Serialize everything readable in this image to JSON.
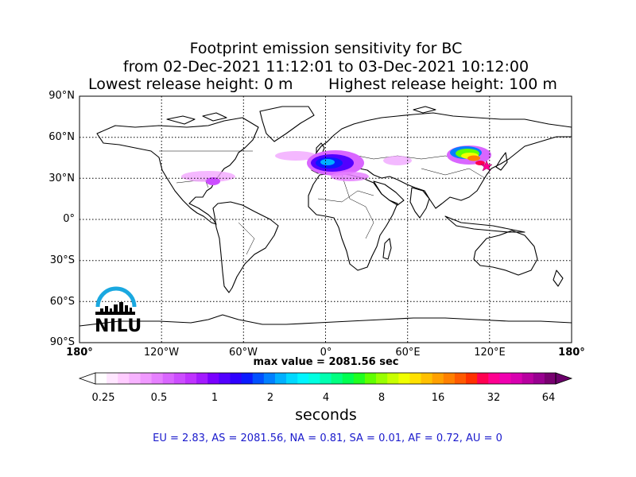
{
  "title": {
    "line1": "Footprint emission sensitivity for BC",
    "line2": "from 02-Dec-2021 11:12:01 to 03-Dec-2021 10:12:00",
    "lowest_release": "Lowest release height: 0 m",
    "highest_release": "Highest release height: 100 m"
  },
  "map": {
    "lat_labels": [
      "90°N",
      "60°N",
      "30°N",
      "0°",
      "30°S",
      "60°S",
      "90°S"
    ],
    "lon_labels": [
      "180°",
      "120°W",
      "60°W",
      "0°",
      "60°E",
      "120°E",
      "180°"
    ],
    "grid": "dotted",
    "logo_text": "NILU"
  },
  "max_value": "max value = 2081.56 sec",
  "colorbar": {
    "ticks": [
      "0.25",
      "0.5",
      "1",
      "2",
      "4",
      "8",
      "16",
      "32",
      "64"
    ],
    "unit": "seconds",
    "colors": [
      "#ffffff",
      "#ffe6ff",
      "#ffccff",
      "#f7b3ff",
      "#f099ff",
      "#e680ff",
      "#d966ff",
      "#cc4dff",
      "#bf33ff",
      "#a31aff",
      "#7a00ff",
      "#5200ff",
      "#2e00ff",
      "#0a1aff",
      "#0050ff",
      "#0080ff",
      "#00b0ff",
      "#00d8ff",
      "#00f5ff",
      "#00ffe0",
      "#00ffb0",
      "#00ff80",
      "#00ff50",
      "#20ff20",
      "#60ff00",
      "#98ff00",
      "#c8ff00",
      "#f0ff00",
      "#ffe000",
      "#ffc000",
      "#ffa000",
      "#ff8000",
      "#ff5a00",
      "#ff3000",
      "#ff0050",
      "#ff0090",
      "#f000b0",
      "#d800b0",
      "#b800a0",
      "#980090",
      "#780070"
    ]
  },
  "regions": "EU = 2.83,  AS = 2081.56,  NA = 0.81,  SA = 0.01,  AF = 0.72,  AU = 0"
}
